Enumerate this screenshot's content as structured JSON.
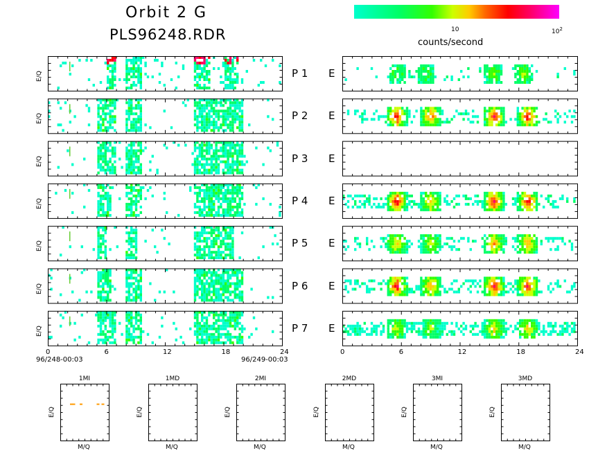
{
  "title": "Orbit 2 G",
  "subtitle": "PLS96248.RDR",
  "colorbar": {
    "label": "counts/second",
    "tick_10": "10",
    "tick_100": "10",
    "tick_100_exp": "2"
  },
  "panel_ylabel": "E/Q",
  "panel_p": [
    "P 1",
    "P 2",
    "P 3",
    "P 4",
    "P 5",
    "P 6",
    "P 7"
  ],
  "panel_e": "E",
  "xticks": [
    "0",
    "6",
    "12",
    "18",
    "24"
  ],
  "date_start": "96/248-00:03",
  "date_end": "96/249-00:03",
  "small_panels": {
    "titles": [
      "1MI",
      "1MD",
      "2MI",
      "2MD",
      "3MI",
      "3MD"
    ],
    "xlabel": "M/Q",
    "ylabel": "E/Q"
  },
  "chart_data": {
    "type": "heatmap",
    "x_unit": "hours",
    "xlim": [
      0,
      24
    ],
    "colorscale": [
      "#00ffcc",
      "#00ff66",
      "#33ff00",
      "#ccff00",
      "#ffcc00",
      "#ff6600",
      "#ff0000",
      "#ff0066",
      "#ff00ff"
    ],
    "left_panels": [
      {
        "name": "P 1",
        "bands": [
          [
            6,
            7,
            2
          ],
          [
            8,
            9.5,
            1
          ],
          [
            15,
            16.5,
            2
          ],
          [
            18,
            19.5,
            2
          ]
        ],
        "noise": 0.25
      },
      {
        "name": "P 2",
        "bands": [
          [
            5,
            7,
            1
          ],
          [
            8,
            9.5,
            1
          ],
          [
            15,
            20,
            1
          ]
        ],
        "noise": 0.25
      },
      {
        "name": "P 3",
        "bands": [
          [
            5,
            7,
            1
          ],
          [
            8,
            9.5,
            1
          ],
          [
            15,
            20,
            1
          ]
        ],
        "noise": 0.2
      },
      {
        "name": "P 4",
        "bands": [
          [
            5,
            6.5,
            1
          ],
          [
            8,
            9.5,
            0.5
          ],
          [
            15,
            20,
            1
          ]
        ],
        "noise": 0.2
      },
      {
        "name": "P 5",
        "bands": [
          [
            5,
            6,
            0.5
          ],
          [
            8,
            9,
            0.5
          ],
          [
            15,
            19,
            0.5
          ]
        ],
        "noise": 0.15
      },
      {
        "name": "P 6",
        "bands": [
          [
            5,
            6.5,
            1
          ],
          [
            8,
            9.5,
            1
          ],
          [
            15,
            20,
            1
          ]
        ],
        "noise": 0.2
      },
      {
        "name": "P 7",
        "bands": [
          [
            5,
            7,
            1
          ],
          [
            8,
            9.5,
            1
          ],
          [
            15,
            20,
            1
          ]
        ],
        "noise": 0.2
      }
    ],
    "right_panels": [
      {
        "name": "P 1 E",
        "peaks": [
          [
            5.5,
            1
          ],
          [
            8.5,
            1
          ],
          [
            15.5,
            1.5
          ],
          [
            18.5,
            1.5
          ]
        ],
        "background": 0.1
      },
      {
        "name": "P 2 E",
        "peaks": [
          [
            5.5,
            4
          ],
          [
            9,
            3
          ],
          [
            15.5,
            4
          ],
          [
            19,
            4
          ]
        ],
        "background": 0.35
      },
      {
        "name": "P 3 E",
        "peaks": [],
        "background": 0
      },
      {
        "name": "P 4 E",
        "peaks": [
          [
            5.5,
            4
          ],
          [
            9,
            2.5
          ],
          [
            15.5,
            4
          ],
          [
            19,
            4
          ]
        ],
        "background": 0.5
      },
      {
        "name": "P 5 E",
        "peaks": [
          [
            5.5,
            2.5
          ],
          [
            9,
            2
          ],
          [
            15.5,
            3
          ],
          [
            19,
            3
          ]
        ],
        "background": 0.35
      },
      {
        "name": "P 6 E",
        "peaks": [
          [
            5.5,
            4
          ],
          [
            9,
            3
          ],
          [
            15.5,
            4
          ],
          [
            19,
            4
          ]
        ],
        "background": 0.4
      },
      {
        "name": "P 7 E",
        "peaks": [
          [
            5.5,
            2
          ],
          [
            9,
            1.5
          ],
          [
            15.5,
            2.5
          ],
          [
            19,
            2.5
          ]
        ],
        "background": 0.7
      }
    ],
    "small_panels_data": [
      {
        "name": "1MI",
        "marks": [
          {
            "m": 0.2,
            "e": 0.7,
            "color": "#ff9900"
          },
          {
            "m": 0.25,
            "e": 0.7,
            "color": "#ff9900"
          },
          {
            "m": 0.4,
            "e": 0.7,
            "color": "#ff9900"
          },
          {
            "m": 0.75,
            "e": 0.7,
            "color": "#ff9900"
          },
          {
            "m": 0.85,
            "e": 0.7,
            "color": "#ff9900"
          }
        ]
      },
      {
        "name": "1MD",
        "marks": []
      },
      {
        "name": "2MI",
        "marks": []
      },
      {
        "name": "2MD",
        "marks": []
      },
      {
        "name": "3MI",
        "marks": []
      },
      {
        "name": "3MD",
        "marks": []
      }
    ]
  }
}
